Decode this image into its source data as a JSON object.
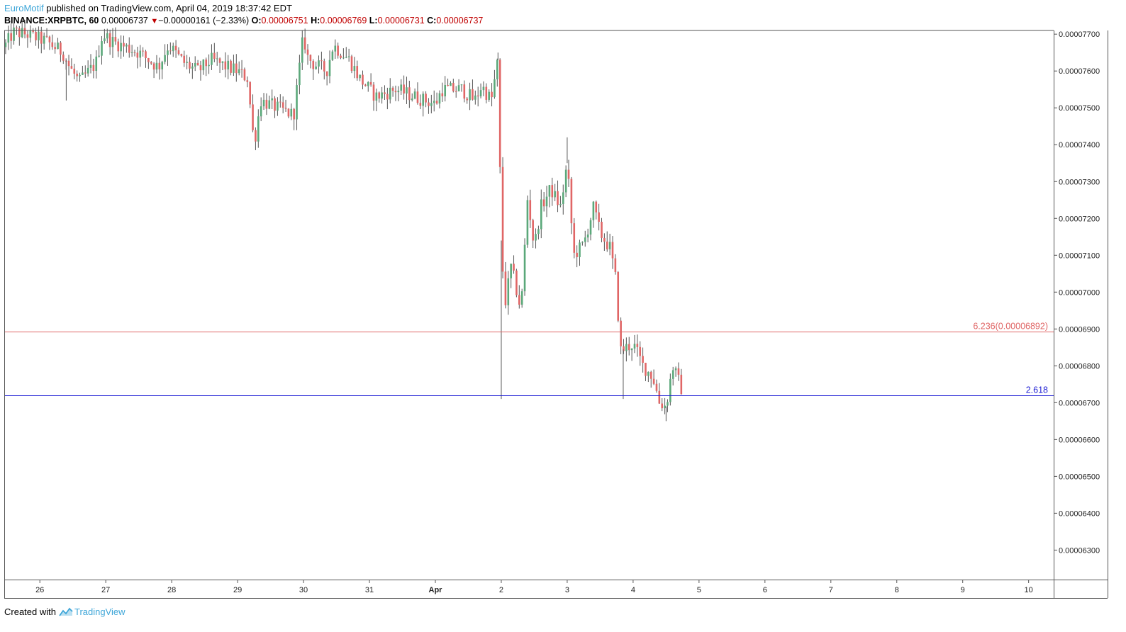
{
  "header": {
    "author": "EuroMotif",
    "published": " published on TradingView.com, April 04, 2019 18:37:42 EDT",
    "symbol": "BINANCE:XRPBTC, 60",
    "last": "0.00006737",
    "change": "−0.00000161 (−2.33%)",
    "o_label": "O:",
    "o_value": "0.00006751",
    "h_label": "H:",
    "h_value": "0.00006769",
    "l_label": "L:",
    "l_value": "0.00006731",
    "c_label": "C:",
    "c_value": "0.00006737"
  },
  "footer": {
    "created_with": "Created with",
    "brand": "TradingView"
  },
  "colors": {
    "up": "#5ba87a",
    "down": "#e06666",
    "fib_red": "#e06666",
    "fib_blue": "#1f1fd4",
    "axis": "#555555",
    "brand": "#3ea6d8"
  },
  "chart_data": {
    "type": "candlestick",
    "ylim": [
      6.22e-05,
      7.71e-05
    ],
    "y_ticks": [
      "0.00007700",
      "0.00007600",
      "0.00007500",
      "0.00007400",
      "0.00007300",
      "0.00007200",
      "0.00007100",
      "0.00007000",
      "0.00006900",
      "0.00006800",
      "0.00006700",
      "0.00006600",
      "0.00006500",
      "0.00006400",
      "0.00006300"
    ],
    "y_tick_values": [
      7.7e-05,
      7.6e-05,
      7.5e-05,
      7.4e-05,
      7.3e-05,
      7.2e-05,
      7.1e-05,
      7e-05,
      6.9e-05,
      6.8e-05,
      6.7e-05,
      6.6e-05,
      6.5e-05,
      6.4e-05,
      6.3e-05
    ],
    "x_ticks": [
      "26",
      "27",
      "28",
      "29",
      "30",
      "31",
      "Apr",
      "2",
      "3",
      "4",
      "5",
      "6",
      "7",
      "8",
      "9",
      "10"
    ],
    "x_tick_days": [
      0,
      1,
      2,
      3,
      4,
      5,
      6,
      7,
      8,
      9,
      10,
      11,
      12,
      13,
      14,
      15
    ],
    "xlim_days": [
      -0.54,
      15.38
    ],
    "levels": [
      {
        "label": "6.236(0.00006892)",
        "value": 6.892e-05,
        "color": "#e06666"
      },
      {
        "label": "2.618",
        "value": 6.719e-05,
        "color": "#1f1fd4"
      }
    ],
    "anchors": [
      [
        -0.54,
        7.665e-05
      ],
      [
        -0.4,
        7.705e-05
      ],
      [
        -0.2,
        7.7e-05
      ],
      [
        0.1,
        7.68e-05
      ],
      [
        0.35,
        7.65e-05
      ],
      [
        0.45,
        7.61e-05
      ],
      [
        0.6,
        7.57e-05
      ],
      [
        0.85,
        7.62e-05
      ],
      [
        0.95,
        7.7e-05
      ],
      [
        1.1,
        7.68e-05
      ],
      [
        1.5,
        7.65e-05
      ],
      [
        1.8,
        7.61e-05
      ],
      [
        1.95,
        7.67e-05
      ],
      [
        2.2,
        7.62e-05
      ],
      [
        2.4,
        7.6e-05
      ],
      [
        2.6,
        7.63e-05
      ],
      [
        2.85,
        7.61e-05
      ],
      [
        3.0,
        7.6e-05
      ],
      [
        3.15,
        7.58e-05
      ],
      [
        3.25,
        7.4e-05
      ],
      [
        3.35,
        7.52e-05
      ],
      [
        3.6,
        7.5e-05
      ],
      [
        3.85,
        7.48e-05
      ],
      [
        4.0,
        7.7e-05
      ],
      [
        4.05,
        7.64e-05
      ],
      [
        4.15,
        7.62e-05
      ],
      [
        4.35,
        7.6e-05
      ],
      [
        4.45,
        7.67e-05
      ],
      [
        4.7,
        7.63e-05
      ],
      [
        4.85,
        7.58e-05
      ],
      [
        5.1,
        7.53e-05
      ],
      [
        5.4,
        7.55e-05
      ],
      [
        5.7,
        7.53e-05
      ],
      [
        6.0,
        7.51e-05
      ],
      [
        6.1,
        7.55e-05
      ],
      [
        6.4,
        7.55e-05
      ],
      [
        6.6,
        7.52e-05
      ],
      [
        6.7,
        7.56e-05
      ],
      [
        6.85,
        7.52e-05
      ],
      [
        6.95,
        7.63e-05
      ],
      [
        7.0,
        7.14e-05
      ],
      [
        7.05,
        6.96e-05
      ],
      [
        7.15,
        7.07e-05
      ],
      [
        7.3,
        6.95e-05
      ],
      [
        7.4,
        7.26e-05
      ],
      [
        7.5,
        7.12e-05
      ],
      [
        7.6,
        7.23e-05
      ],
      [
        7.75,
        7.28e-05
      ],
      [
        7.9,
        7.23e-05
      ],
      [
        8.0,
        7.35e-05
      ],
      [
        8.05,
        7.22e-05
      ],
      [
        8.1,
        7.1e-05
      ],
      [
        8.25,
        7.13e-05
      ],
      [
        8.4,
        7.23e-05
      ],
      [
        8.5,
        7.16e-05
      ],
      [
        8.65,
        7.12e-05
      ],
      [
        8.75,
        7.02e-05
      ],
      [
        8.8,
        6.84e-05
      ],
      [
        9.0,
        6.86e-05
      ],
      [
        9.15,
        6.8e-05
      ],
      [
        9.3,
        6.77e-05
      ],
      [
        9.4,
        6.7e-05
      ],
      [
        9.5,
        6.69e-05
      ],
      [
        9.6,
        6.8e-05
      ],
      [
        9.75,
        6.73e-05
      ]
    ],
    "wick_points": [
      [
        7.0,
        6.71e-05
      ],
      [
        8.0,
        7.42e-05
      ],
      [
        8.85,
        6.71e-05
      ],
      [
        9.5,
        6.65e-05
      ],
      [
        3.25,
        7.4e-05
      ],
      [
        6.95,
        7.65e-05
      ],
      [
        0.4,
        7.52e-05
      ]
    ]
  }
}
